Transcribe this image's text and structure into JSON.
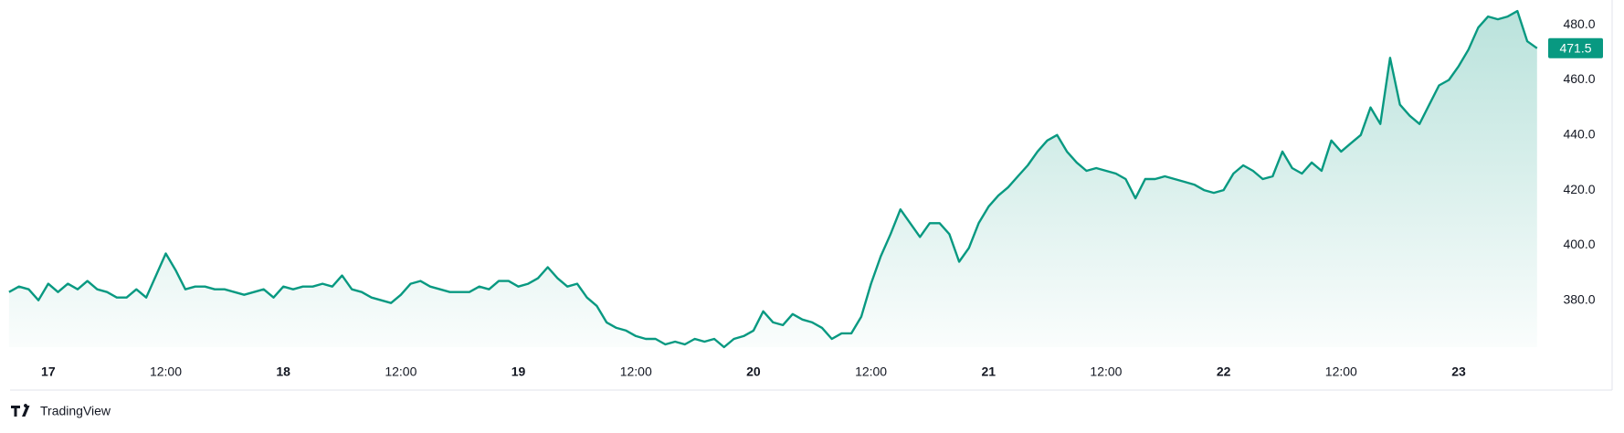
{
  "chart_data": {
    "type": "line",
    "x": [
      -4,
      -3,
      -2,
      -1,
      0,
      1,
      2,
      3,
      4,
      5,
      6,
      7,
      8,
      9,
      10,
      11,
      12,
      13,
      14,
      15,
      16,
      17,
      18,
      19,
      20,
      21,
      22,
      23,
      24,
      25,
      26,
      27,
      28,
      29,
      30,
      31,
      32,
      33,
      34,
      35,
      36,
      37,
      38,
      39,
      40,
      41,
      42,
      43,
      44,
      45,
      46,
      47,
      48,
      49,
      50,
      51,
      52,
      53,
      54,
      55,
      56,
      57,
      58,
      59,
      60,
      61,
      62,
      63,
      64,
      65,
      66,
      67,
      68,
      69,
      70,
      71,
      72,
      73,
      74,
      75,
      76,
      77,
      78,
      79,
      80,
      81,
      82,
      83,
      84,
      85,
      86,
      87,
      88,
      89,
      90,
      91,
      92,
      93,
      94,
      95,
      96,
      97,
      98,
      99,
      100,
      101,
      102,
      103,
      104,
      105,
      106,
      107,
      108,
      109,
      110,
      111,
      112,
      113,
      114,
      115,
      116,
      117,
      118,
      119,
      120,
      121,
      122,
      123,
      124,
      125,
      126,
      127,
      128,
      129,
      130,
      131,
      132,
      133,
      134,
      135,
      136,
      137,
      138,
      139,
      140,
      141,
      142,
      143,
      144,
      145,
      146,
      147,
      148,
      149,
      150,
      151,
      152
    ],
    "series": [
      {
        "color": "#089981",
        "values": [
          383,
          385,
          384,
          380,
          386,
          383,
          386,
          384,
          387,
          384,
          383,
          381,
          381,
          384,
          381,
          389,
          397,
          391,
          384,
          385,
          385,
          384,
          384,
          383,
          382,
          383,
          384,
          381,
          385,
          384,
          385,
          385,
          386,
          385,
          389,
          384,
          383,
          381,
          380,
          379,
          382,
          386,
          387,
          385,
          384,
          383,
          383,
          383,
          385,
          384,
          387,
          387,
          385,
          386,
          388,
          392,
          388,
          385,
          386,
          381,
          378,
          372,
          370,
          369,
          367,
          366,
          366,
          364,
          365,
          364,
          366,
          365,
          366,
          363,
          366,
          367,
          369,
          376,
          372,
          371,
          375,
          373,
          372,
          370,
          366,
          368,
          368,
          374,
          386,
          396,
          404,
          413,
          408,
          403,
          408,
          408,
          404,
          394,
          399,
          408,
          414,
          418,
          421,
          425,
          429,
          434,
          438,
          440,
          434,
          430,
          427,
          428,
          427,
          426,
          424,
          417,
          424,
          424,
          425,
          424,
          423,
          422,
          420,
          419,
          420,
          426,
          429,
          427,
          424,
          425,
          434,
          428,
          426,
          430,
          427,
          438,
          434,
          437,
          440,
          450,
          444,
          468,
          451,
          447,
          444,
          451,
          458,
          460,
          465,
          471,
          479,
          483,
          482,
          483,
          485,
          474,
          471.5
        ]
      }
    ],
    "xlim": [
      -3.9,
      152.3
    ],
    "ylim": [
      363,
      489
    ],
    "xticks": [
      {
        "value": 0,
        "label": "17"
      },
      {
        "value": 12,
        "label": "12:00"
      },
      {
        "value": 24,
        "label": "18"
      },
      {
        "value": 36,
        "label": "12:00"
      },
      {
        "value": 48,
        "label": "19"
      },
      {
        "value": 60,
        "label": "12:00"
      },
      {
        "value": 72,
        "label": "20"
      },
      {
        "value": 84,
        "label": "12:00"
      },
      {
        "value": 96,
        "label": "21"
      },
      {
        "value": 108,
        "label": "12:00"
      },
      {
        "value": 120,
        "label": "22"
      },
      {
        "value": 132,
        "label": "12:00"
      },
      {
        "value": 144,
        "label": "23"
      }
    ],
    "yticks": [
      {
        "value": 380,
        "label": "380.0"
      },
      {
        "value": 400,
        "label": "400.0"
      },
      {
        "value": 420,
        "label": "420.0"
      },
      {
        "value": 440,
        "label": "440.0"
      },
      {
        "value": 460,
        "label": "460.0"
      },
      {
        "value": 480,
        "label": "480.0"
      }
    ],
    "watermark": "TradingView"
  }
}
